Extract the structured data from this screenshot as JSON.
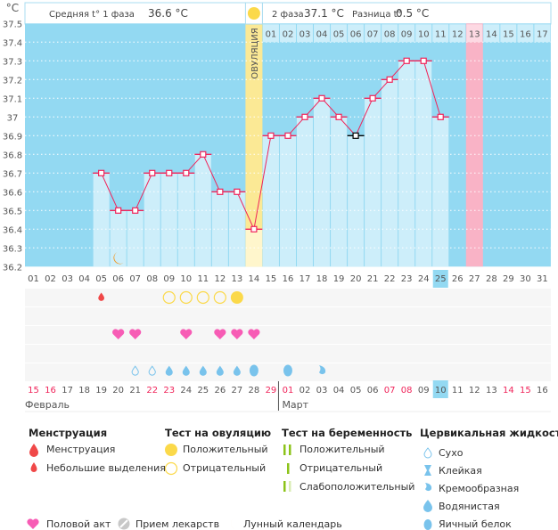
{
  "header": {
    "phase1_label": "Средняя t° 1 фаза",
    "phase1_value": "36.6 °C",
    "phase2_label": "2 фаза",
    "phase2_value": "37.1 °C",
    "diff_label": "Разница t°",
    "diff_value": "0.5 °C",
    "ovulation_label": "ОВУЛЯЦИЯ"
  },
  "chart_data": {
    "type": "line",
    "ylabel": "°C",
    "ylim": [
      36.2,
      37.5
    ],
    "yticks": [
      "37.5",
      "37.4",
      "37.3",
      "37.2",
      "37.1",
      "37",
      "36.9",
      "36.8",
      "36.7",
      "36.6",
      "36.5",
      "36.4",
      "36.3",
      "36.2"
    ],
    "x_days": [
      "01",
      "02",
      "03",
      "04",
      "05",
      "06",
      "07",
      "08",
      "09",
      "10",
      "11",
      "12",
      "13",
      "14",
      "15",
      "16",
      "17",
      "18",
      "19",
      "20",
      "21",
      "22",
      "23",
      "24",
      "25",
      "26",
      "27",
      "28",
      "29",
      "30",
      "31"
    ],
    "temperatures": {
      "05": 36.7,
      "06": 36.5,
      "07": 36.5,
      "08": 36.7,
      "09": 36.7,
      "10": 36.7,
      "11": 36.8,
      "12": 36.6,
      "13": 36.6,
      "14": 36.4,
      "15": 36.9,
      "16": 36.9,
      "17": 37.0,
      "18": 37.1,
      "19": 37.0,
      "20": 36.9,
      "21": 37.1,
      "22": 37.2,
      "23": 37.3,
      "24": 37.3,
      "25": 37.0
    },
    "marked_black_day": "20",
    "ovulation_day": "14",
    "cycle_days_from_day": "15",
    "cycle_days": [
      "01",
      "02",
      "03",
      "04",
      "05",
      "06",
      "07",
      "08",
      "09",
      "10",
      "11",
      "12",
      "13",
      "14",
      "15",
      "16",
      "17"
    ],
    "pink_day": "27",
    "today_day": "25",
    "moon_day": "06",
    "dates": [
      "15",
      "16",
      "17",
      "18",
      "19",
      "20",
      "21",
      "22",
      "23",
      "24",
      "25",
      "26",
      "27",
      "28",
      "29",
      "01",
      "02",
      "03",
      "04",
      "05",
      "06",
      "07",
      "08",
      "09",
      "10",
      "11",
      "12",
      "13",
      "14",
      "15",
      "16"
    ],
    "red_dates_index": [
      0,
      1,
      7,
      8,
      14,
      15,
      21,
      22,
      28,
      29
    ],
    "months": [
      "Февраль",
      "Март"
    ],
    "rows": {
      "menstruation_small": [
        "05"
      ],
      "ovulation_negative": [
        "09",
        "10",
        "11",
        "12"
      ],
      "ovulation_positive": [
        "13"
      ],
      "intercourse": [
        "06",
        "07",
        "10",
        "12",
        "13",
        "14"
      ],
      "cervical": {
        "07": "dry",
        "08": "dry",
        "09": "watery",
        "10": "watery",
        "11": "watery",
        "12": "watery",
        "13": "watery",
        "14": "eggwhite",
        "16": "eggwhite",
        "18": "creamy"
      }
    }
  },
  "legend": {
    "menstruation": {
      "title": "Менструация",
      "items": [
        "Менструация",
        "Небольшие выделения"
      ]
    },
    "ovulation_test": {
      "title": "Тест на овуляцию",
      "items": [
        "Положительный",
        "Отрицательный"
      ]
    },
    "pregnancy_test": {
      "title": "Тест на беременность",
      "items": [
        "Положительный",
        "Отрицательный",
        "Слабоположительный"
      ]
    },
    "cervical": {
      "title": "Цервикальная жидкость",
      "items": [
        "Сухо",
        "Клейкая",
        "Кремообразная",
        "Водянистая",
        "Яичный белок"
      ]
    },
    "other": [
      "Половой акт",
      "Прием лекарств",
      "Лунный календарь"
    ]
  },
  "colors": {
    "bg": "#93d9f2",
    "bar": "#cdeefa",
    "line": "#f0245a",
    "ovulation": "#fbe995",
    "pink": "#f9b3c6",
    "heart": "#f75cb5",
    "drop": "#f04848",
    "sun": "#fbd94a",
    "water": "#79c3ec",
    "pregnancy": "#8cc31a"
  }
}
